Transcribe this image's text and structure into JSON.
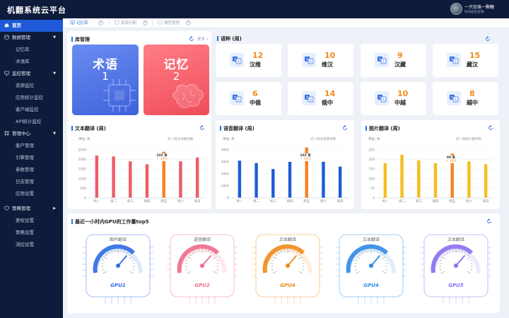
{
  "app": {
    "title": "机翻系统云平台"
  },
  "user": {
    "name": "一只珍珠一颗糖",
    "note": "时间就是金钱!"
  },
  "sidebar": {
    "home": "首页",
    "groups": [
      {
        "label": "数据管理",
        "items": [
          "记忆库",
          "术语库"
        ]
      },
      {
        "label": "监控管理",
        "items": [
          "资源监控",
          "应用统计监控",
          "客户端监控",
          "API统计监控"
        ]
      },
      {
        "label": "管理中心",
        "items": [
          "客户管理",
          "引擎管理",
          "参数管理",
          "日志管理",
          "应用设置"
        ]
      },
      {
        "label": "策略管理",
        "items": [
          "差权设置",
          "策略设置",
          "流控设置"
        ]
      }
    ]
  },
  "tabs": [
    {
      "label": "记忆库",
      "active": true
    },
    {
      "label": "资源分配",
      "active": false
    },
    {
      "label": "模型管理",
      "active": false
    }
  ],
  "library": {
    "title": "库管理",
    "more": "更多 »",
    "cards": [
      {
        "name": "术语",
        "count": "1",
        "color": "#4a74e8"
      },
      {
        "name": "记忆",
        "count": "2",
        "color": "#f0505f"
      }
    ]
  },
  "languages": {
    "title": "语种 (周)",
    "items": [
      {
        "name": "汉维",
        "count": "12"
      },
      {
        "name": "维汉",
        "count": "10"
      },
      {
        "name": "汉藏",
        "count": "9"
      },
      {
        "name": "藏汉",
        "count": "15"
      },
      {
        "name": "中俄",
        "count": "6"
      },
      {
        "name": "俄中",
        "count": "14"
      },
      {
        "name": "中越",
        "count": "10"
      },
      {
        "name": "越中",
        "count": "8"
      }
    ]
  },
  "charts": {
    "text": {
      "title": "文本翻译 (周)",
      "unit": "单位: 条",
      "note": "近一周文本翻译数",
      "highlight_label": "102 条",
      "highlight_pct": "↑ 10%"
    },
    "speech": {
      "title": "语音翻译 (周)",
      "unit": "单位: 条",
      "note": "近一周语音翻译数",
      "highlight_label": "102 条",
      "highlight_pct": "↑ 10%"
    },
    "image": {
      "title": "图片翻译 (周)",
      "unit": "单位: 条",
      "note": "近一周图片翻译数",
      "highlight_label": "90 条",
      "highlight_pct": "↑ 10%"
    }
  },
  "gpu": {
    "title": "最近一小时内GPU的工作量top5",
    "items": [
      {
        "task": "图片翻译",
        "name": "GPU1",
        "color": "#2f6ce5"
      },
      {
        "task": "语音翻译",
        "name": "GPU2",
        "color": "#f06a8a"
      },
      {
        "task": "文本翻译",
        "name": "GPU4",
        "color": "#f08a1c"
      },
      {
        "task": "文本翻译",
        "name": "GPU4",
        "color": "#2f8ae5"
      },
      {
        "task": "文本翻译",
        "name": "GPU5",
        "color": "#8a6ef0"
      }
    ]
  },
  "chart_data": [
    {
      "type": "bar",
      "title": "文本翻译 (周)",
      "ylabel": "单位: 条",
      "categories": [
        "周一",
        "周二",
        "周三",
        "周四",
        "周五",
        "周六",
        "周日"
      ],
      "values": [
        2200,
        2150,
        1900,
        1750,
        2400,
        1900,
        2100
      ],
      "ylim": [
        0,
        2500
      ],
      "yticks": [
        0,
        500,
        1000,
        1500,
        2000,
        2500
      ],
      "color": "#ef5a67",
      "highlight_index": 4,
      "highlight_color": "#f5821f"
    },
    {
      "type": "bar",
      "title": "语音翻译 (周)",
      "ylabel": "单位: 条",
      "categories": [
        "周一",
        "周二",
        "周三",
        "周四",
        "周五",
        "周六",
        "周日"
      ],
      "values": [
        3100,
        2900,
        2400,
        3000,
        4200,
        3000,
        2600
      ],
      "ylim": [
        0,
        4000
      ],
      "yticks": [
        0,
        1000,
        2000,
        3000,
        4000
      ],
      "color": "#1f5bd8",
      "highlight_index": 4,
      "highlight_color": "#f5821f"
    },
    {
      "type": "bar",
      "title": "图片翻译 (周)",
      "ylabel": "单位: 条",
      "categories": [
        "周一",
        "周二",
        "周三",
        "周四",
        "周五",
        "周六",
        "周日"
      ],
      "values": [
        180,
        225,
        195,
        180,
        230,
        190,
        175
      ],
      "ylim": [
        0,
        250
      ],
      "yticks": [
        0,
        50,
        100,
        150,
        200,
        250
      ],
      "color": "#f5bd1f",
      "highlight_index": 4,
      "highlight_color": "#f5821f"
    }
  ]
}
